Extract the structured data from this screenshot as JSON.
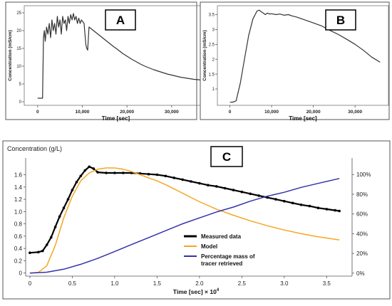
{
  "chart_data": [
    {
      "id": "A",
      "type": "line",
      "panel_label": "A",
      "xlabel": "Time [sec]",
      "ylabel": "Concentration (mS/cm)",
      "xlim": [
        -3000,
        38000
      ],
      "ylim": [
        -1,
        27
      ],
      "x_ticks": [
        0,
        10000,
        20000,
        30000
      ],
      "x_tick_labels": [
        "0",
        "10,000",
        "20,000",
        "30,000"
      ],
      "y_ticks": [
        0,
        5,
        10,
        15,
        20,
        25
      ],
      "y_tick_labels": [
        "0",
        "5",
        "10",
        "15",
        "20",
        "25"
      ],
      "series": [
        {
          "color": "#333333",
          "x": [
            0,
            1100,
            1300,
            1500,
            1700,
            2000,
            2300,
            2600,
            2900,
            3200,
            3500,
            3800,
            4100,
            4400,
            4700,
            5000,
            5300,
            5600,
            5900,
            6200,
            6500,
            6800,
            7100,
            7400,
            7700,
            8000,
            8300,
            8600,
            8900,
            9200,
            9500,
            9800,
            10100,
            10400,
            10600,
            10800,
            11000,
            11200,
            11500,
            12000,
            13000,
            14000,
            15000,
            16000,
            17000,
            18000,
            19000,
            20000,
            21000,
            22000,
            23000,
            24000,
            25000,
            26000,
            27000,
            28000,
            29000,
            30000,
            31000,
            32000,
            33000,
            34000,
            35000,
            36000,
            37000
          ],
          "y": [
            1,
            1,
            18,
            20,
            17,
            21,
            19,
            22,
            18,
            23,
            20,
            22,
            19,
            24,
            21,
            23,
            19,
            24,
            22,
            23,
            20,
            24,
            22,
            24.5,
            23,
            24.8,
            23,
            24,
            22,
            23.5,
            22,
            23,
            22.5,
            22,
            19,
            16,
            15,
            14.5,
            21,
            20.5,
            19.5,
            18.5,
            17.5,
            16.5,
            15.5,
            14.6,
            13.6,
            12.8,
            12.0,
            11.3,
            10.6,
            10.0,
            9.5,
            9.0,
            8.6,
            8.2,
            7.8,
            7.5,
            7.2,
            6.9,
            6.7,
            6.5,
            6.3,
            6.2,
            6.0
          ]
        }
      ]
    },
    {
      "id": "B",
      "type": "line",
      "panel_label": "B",
      "xlabel": "Time [sec]",
      "ylabel": "Concentration (mS/cm)",
      "xlim": [
        -3000,
        38000
      ],
      "ylim": [
        0.45,
        3.8
      ],
      "x_ticks": [
        0,
        10000,
        20000,
        30000
      ],
      "x_tick_labels": [
        "0",
        "10,000",
        "20,000",
        "30,000"
      ],
      "y_ticks": [
        1.0,
        1.5,
        2.0,
        2.5,
        3.0,
        3.5
      ],
      "y_tick_labels": [
        "1",
        "1.5",
        "2",
        "2.5",
        "3",
        "3.5"
      ],
      "series": [
        {
          "color": "#333333",
          "x": [
            0,
            800,
            1500,
            2500,
            3500,
            4500,
            5500,
            6500,
            7000,
            7500,
            8000,
            8500,
            9000,
            9500,
            10000,
            11000,
            12000,
            13000,
            14000,
            15000,
            16000,
            18000,
            20000,
            22000,
            24000,
            26000,
            28000,
            30000,
            32000,
            34000,
            36000
          ],
          "y": [
            0.55,
            0.56,
            0.6,
            1.2,
            2.0,
            2.8,
            3.35,
            3.62,
            3.65,
            3.6,
            3.55,
            3.5,
            3.55,
            3.52,
            3.53,
            3.5,
            3.52,
            3.48,
            3.5,
            3.45,
            3.42,
            3.32,
            3.22,
            3.12,
            2.97,
            2.83,
            2.67,
            2.5,
            2.3,
            2.07,
            1.9
          ]
        }
      ]
    },
    {
      "id": "C",
      "type": "line",
      "panel_label": "C",
      "ylabel": "Concentration (g/L)",
      "xlabel": "Time [sec] × 10",
      "xlabel_superscript": "4",
      "xlim": [
        -0.05,
        3.8
      ],
      "ylim": [
        -0.05,
        1.78
      ],
      "x_ticks": [
        0,
        0.5,
        1.0,
        1.5,
        2.0,
        2.5,
        3.0,
        3.5
      ],
      "x_tick_labels": [
        "0",
        "0.5",
        "1.0",
        "1.5",
        "2.0",
        "2.5",
        "3.0",
        "3.5"
      ],
      "y_ticks": [
        0,
        0.2,
        0.4,
        0.6,
        0.8,
        1.0,
        1.2,
        1.4,
        1.6
      ],
      "y_tick_labels": [
        "0",
        "0.2",
        "0.4",
        "0.6",
        "0.8",
        "1.0",
        "1.2",
        "1.4",
        "1.6"
      ],
      "y2_ticks": [
        0,
        20,
        40,
        60,
        80,
        100
      ],
      "y2_tick_labels": [
        "0%",
        "20%",
        "40%",
        "60%",
        "80%",
        "100%"
      ],
      "y2lim": [
        -3,
        111
      ],
      "legend_position": "center-right",
      "series": [
        {
          "name": "Measured data",
          "color": "#000000",
          "markers": true,
          "x": [
            0,
            0.1,
            0.15,
            0.2,
            0.25,
            0.3,
            0.35,
            0.4,
            0.45,
            0.5,
            0.55,
            0.6,
            0.65,
            0.7,
            0.75,
            0.8,
            0.9,
            1.0,
            1.1,
            1.2,
            1.3,
            1.4,
            1.5,
            1.6,
            1.7,
            1.8,
            1.9,
            2.0,
            2.1,
            2.2,
            2.3,
            2.4,
            2.5,
            2.6,
            2.7,
            2.8,
            2.9,
            3.0,
            3.1,
            3.2,
            3.3,
            3.4,
            3.5,
            3.6,
            3.65
          ],
          "y": [
            0.33,
            0.34,
            0.36,
            0.46,
            0.58,
            0.75,
            0.92,
            1.06,
            1.2,
            1.35,
            1.48,
            1.58,
            1.67,
            1.73,
            1.7,
            1.64,
            1.63,
            1.63,
            1.63,
            1.63,
            1.62,
            1.61,
            1.6,
            1.58,
            1.55,
            1.52,
            1.49,
            1.46,
            1.43,
            1.41,
            1.38,
            1.35,
            1.32,
            1.29,
            1.26,
            1.23,
            1.2,
            1.17,
            1.14,
            1.11,
            1.09,
            1.06,
            1.04,
            1.02,
            1.01
          ]
        },
        {
          "name": "Model",
          "color": "#f5a623",
          "x": [
            0,
            0.1,
            0.2,
            0.3,
            0.4,
            0.5,
            0.6,
            0.7,
            0.8,
            0.9,
            1.0,
            1.1,
            1.2,
            1.3,
            1.4,
            1.5,
            1.6,
            1.7,
            1.8,
            1.9,
            2.0,
            2.2,
            2.4,
            2.6,
            2.8,
            3.0,
            3.2,
            3.4,
            3.6,
            3.65
          ],
          "y": [
            0,
            0.01,
            0.12,
            0.45,
            0.9,
            1.25,
            1.5,
            1.63,
            1.69,
            1.71,
            1.71,
            1.69,
            1.65,
            1.6,
            1.55,
            1.5,
            1.44,
            1.37,
            1.3,
            1.23,
            1.16,
            1.04,
            0.94,
            0.85,
            0.77,
            0.7,
            0.64,
            0.59,
            0.55,
            0.54
          ]
        },
        {
          "name": "Percentage mass of tracer retrieved",
          "color": "#3333aa",
          "axis": "right",
          "x": [
            0,
            0.2,
            0.4,
            0.6,
            0.8,
            1.0,
            1.2,
            1.4,
            1.6,
            1.8,
            2.0,
            2.2,
            2.4,
            2.6,
            2.8,
            3.0,
            3.2,
            3.4,
            3.6,
            3.65
          ],
          "y": [
            0,
            1,
            4,
            9,
            15,
            22,
            29,
            36,
            43,
            50,
            56,
            62,
            67,
            73,
            78,
            82,
            87,
            91,
            95,
            96
          ]
        }
      ]
    }
  ]
}
